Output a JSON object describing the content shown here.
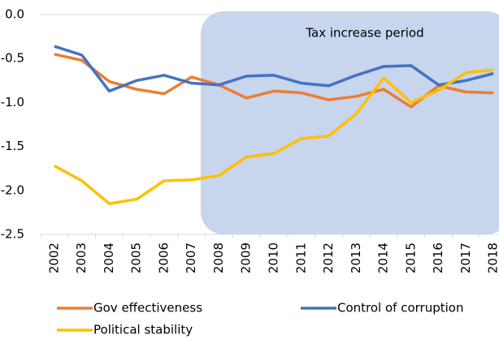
{
  "chart_data": {
    "type": "line",
    "categories": [
      "2002",
      "2003",
      "2004",
      "2005",
      "2006",
      "2007",
      "2008",
      "2009",
      "2010",
      "2011",
      "2012",
      "2013",
      "2014",
      "2015",
      "2016",
      "2017",
      "2018"
    ],
    "series": [
      {
        "name": "Gov effectiveness",
        "color": "#ed7d31",
        "values": [
          -0.45,
          -0.52,
          -0.76,
          -0.85,
          -0.9,
          -0.71,
          -0.8,
          -0.95,
          -0.87,
          -0.89,
          -0.97,
          -0.93,
          -0.85,
          -1.05,
          -0.81,
          -0.88,
          -0.89
        ]
      },
      {
        "name": "Control of corruption",
        "color": "#4472c4",
        "values": [
          -0.36,
          -0.46,
          -0.87,
          -0.75,
          -0.69,
          -0.78,
          -0.8,
          -0.7,
          -0.69,
          -0.78,
          -0.81,
          -0.69,
          -0.59,
          -0.58,
          -0.8,
          -0.75,
          -0.67
        ]
      },
      {
        "name": "Political stability",
        "color": "#ffc000",
        "values": [
          -1.72,
          -1.89,
          -2.15,
          -2.1,
          -1.89,
          -1.88,
          -1.83,
          -1.62,
          -1.58,
          -1.41,
          -1.38,
          -1.13,
          -0.72,
          -1.0,
          -0.86,
          -0.66,
          -0.63
        ]
      }
    ],
    "ylim": [
      -2.5,
      0
    ],
    "yticks": [
      {
        "value": 0,
        "label": "0.0"
      },
      -0.5,
      {
        "value": -1,
        "label": "-1.0"
      },
      -1.5,
      {
        "value": -2,
        "label": "-2.0"
      },
      -2.5
    ],
    "annotation": "Tax increase period",
    "legend": "bottom"
  }
}
